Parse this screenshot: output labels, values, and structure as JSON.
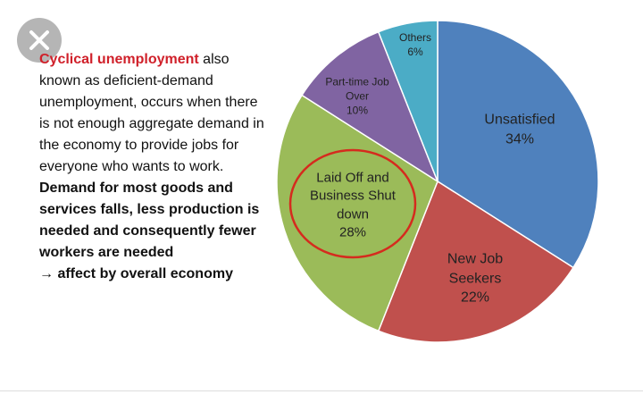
{
  "text": {
    "heading": "Cyclical unemployment",
    "body": "also known as deficient-demand unemployment, occurs when there is not enough aggregate demand in the economy to provide jobs for everyone who wants to work.",
    "bold": "Demand for most goods and services falls, less production is needed and consequently fewer workers are needed",
    "arrow": "→ affect by overall economy"
  },
  "chart_data": {
    "type": "pie",
    "categories": [
      "Unsatisfied",
      "New Job Seekers",
      "Laid Off and Business Shut down",
      "Part-time Job Over",
      "Others"
    ],
    "values": [
      34,
      22,
      28,
      10,
      6
    ],
    "value_labels": [
      "34%",
      "22%",
      "28%",
      "10%",
      "6%"
    ],
    "colors": [
      "#4f81bd",
      "#c0504d",
      "#9bbb59",
      "#8064a2",
      "#4bacc6"
    ]
  }
}
